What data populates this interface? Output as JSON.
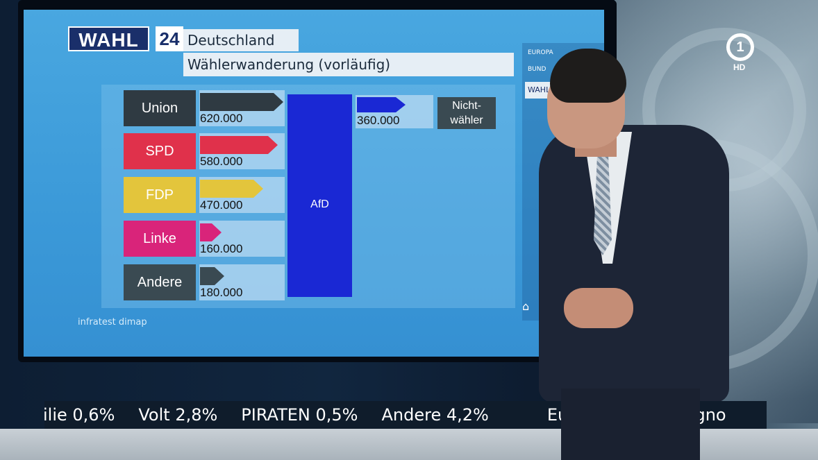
{
  "broadcast": {
    "logo_text": "WAHL",
    "logo_number": "24",
    "region": "Deutschland",
    "subtitle": "Wählerwanderung (vorläufig)",
    "source": "infratest dimap",
    "channel_logo": "1",
    "channel_hd": "HD"
  },
  "voter_flow": {
    "target_party": "AfD",
    "rows": [
      {
        "party": "Union",
        "value": "620.000",
        "value_num": 620000,
        "color": "#2f3a42"
      },
      {
        "party": "SPD",
        "value": "580.000",
        "value_num": 580000,
        "color": "#e0314b"
      },
      {
        "party": "FDP",
        "value": "470.000",
        "value_num": 470000,
        "color": "#e3c53c"
      },
      {
        "party": "Linke",
        "value": "160.000",
        "value_num": 160000,
        "color": "#d9247a"
      },
      {
        "party": "Andere",
        "value": "180.000",
        "value_num": 180000,
        "color": "#3a4a52"
      }
    ],
    "non_voters": {
      "label": "Nicht-\nwähler",
      "value": "360.000",
      "value_num": 360000,
      "color": "#1a28d4"
    }
  },
  "side_menu": {
    "items": [
      {
        "label": "EUROPA"
      },
      {
        "label": "BUND"
      },
      {
        "label": "WAHL"
      }
    ]
  },
  "ticker": {
    "items": [
      "ilie 0,6%",
      "Volt 2,8%",
      "PIRATEN 0,5%",
      "Andere 4,2%",
      "Europawahl",
      "Progno"
    ]
  },
  "colors": {
    "screen_bg": "#3b99d8",
    "afd_bar": "#1a28d4",
    "logo_bg": "#1a2f6a"
  }
}
